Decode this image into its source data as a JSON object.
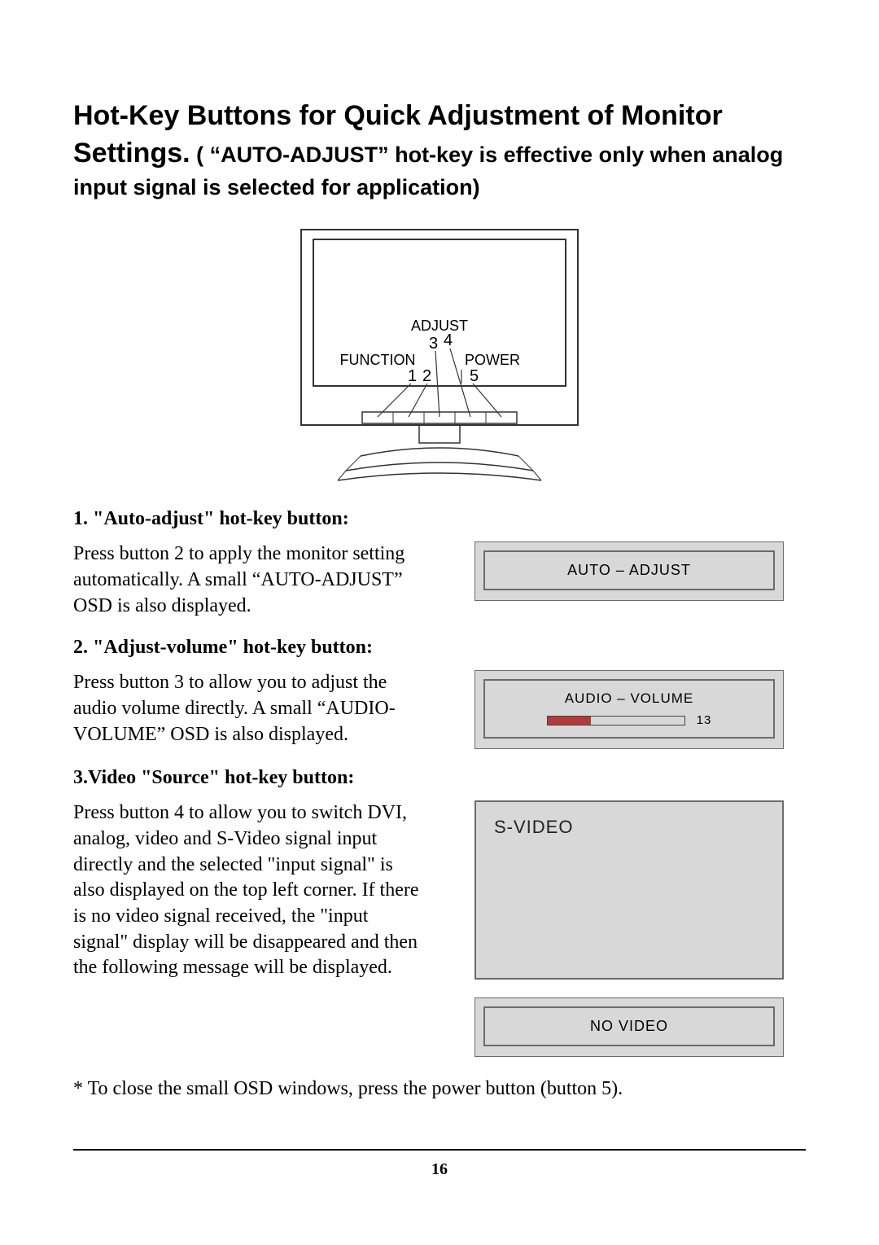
{
  "title": {
    "line1": "Hot-Key Buttons for Quick Adjustment of Monitor",
    "settings_word": "Settings.",
    "paren": " ( “AUTO-ADJUST” hot-key is effective only when analog input signal is selected for application)"
  },
  "diagram": {
    "label_adjust": "ADJUST",
    "label_function": "FUNCTION",
    "label_power": "POWER",
    "n1": "1",
    "n2": "2",
    "n3": "3",
    "n4": "4",
    "n5": "5",
    "stroke": "#333333",
    "fill": "#ffffff",
    "text_color": "#000000",
    "font_size_labels": 18,
    "font_size_nums": 20
  },
  "sections": {
    "s1": {
      "head": "1. \"Auto-adjust\" hot-key button:",
      "body": "Press button 2 to apply the monitor setting automatically. A small “AUTO-ADJUST” OSD is also displayed.",
      "osd_label": "AUTO – ADJUST"
    },
    "s2": {
      "head": "2. \"Adjust-volume\" hot-key button:",
      "body": "Press button 3 to allow you to adjust the audio volume directly. A small “AUDIO-VOLUME” OSD is also displayed.",
      "osd_label": "AUDIO – VOLUME",
      "volume_value": "13",
      "volume_fill_pct": 32,
      "volume_fill_color": "#b33a3a"
    },
    "s3": {
      "head": "3.Video \"Source\" hot-key button:",
      "body": "Press button 4 to allow you to switch DVI, analog, video and S-Video signal input directly and the selected \"input signal\" is also displayed on the top left corner. If there is no video signal received, the \"input signal\" display will be disappeared and then the following message will be displayed.",
      "svideo_label": "S-VIDEO",
      "novideo_label": "NO  VIDEO"
    }
  },
  "footnote": "* To close the small OSD windows, press the power button (button 5).",
  "page_number": "16",
  "osd_style": {
    "outer_bg": "#d8d8d8",
    "border_color": "#6b6b6b"
  }
}
